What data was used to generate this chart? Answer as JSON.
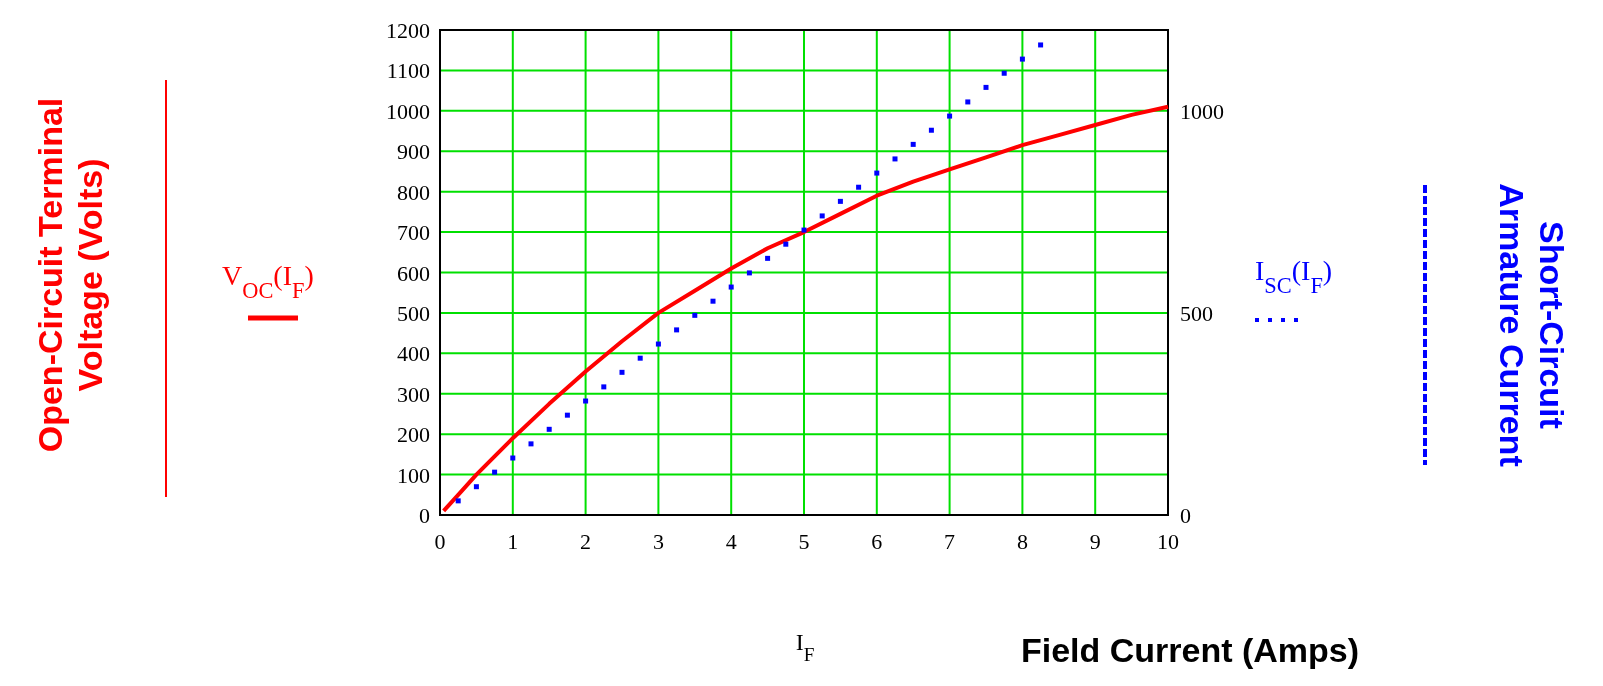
{
  "chart_data": {
    "type": "line",
    "xlabel": "I$_{F}$",
    "annotations": [
      "Open-Circuit Terminal Voltage (Volts)",
      "Short-Circuit Armature Current",
      "Field Current (Amps)"
    ],
    "xlim": [
      0,
      10
    ],
    "xticks": [
      0,
      1,
      2,
      3,
      4,
      5,
      6,
      7,
      8,
      9,
      10
    ],
    "ylim": [
      0,
      1200
    ],
    "yticks": [
      0,
      100,
      200,
      300,
      400,
      500,
      600,
      700,
      800,
      900,
      1000,
      1100,
      1200
    ],
    "y2lim": [
      0,
      1200
    ],
    "y2ticks": [
      0,
      500,
      1000
    ],
    "grid": true,
    "legend": "left",
    "series": [
      {
        "name": "V$_{OC}$(I$_{F}$)",
        "color": "#ff0000",
        "line_style": "solid",
        "marker": "none",
        "x": [
          0.05,
          0.25,
          0.5,
          0.75,
          1,
          1.5,
          2,
          2.5,
          3,
          3.5,
          4,
          4.5,
          5,
          5.5,
          6,
          6.5,
          7,
          7.5,
          8,
          8.5,
          9,
          9.5,
          10
        ],
        "values": [
          10,
          50,
          100,
          145,
          190,
          275,
          355,
          430,
          500,
          555,
          610,
          660,
          700,
          745,
          790,
          825,
          855,
          885,
          915,
          940,
          965,
          990,
          1010
        ]
      },
      {
        "name": "I$_{SC}$(I$_{F}$)",
        "color": "#0000ff",
        "type": "scatter",
        "marker": "square",
        "axis": "y2",
        "x": [
          0.25,
          0.5,
          0.75,
          1,
          1.25,
          1.5,
          1.75,
          2,
          2.25,
          2.5,
          2.75,
          3,
          3.25,
          3.5,
          3.75,
          4,
          4.25,
          4.5,
          4.75,
          5,
          5.25,
          5.5,
          5.75,
          6,
          6.25,
          6.5,
          6.75,
          7,
          7.25,
          7.5,
          7.75,
          8,
          8.25
        ],
        "values": [
          35,
          70,
          106,
          141,
          176,
          212,
          247,
          282,
          317,
          353,
          388,
          423,
          458,
          494,
          529,
          564,
          599,
          635,
          670,
          705,
          740,
          776,
          811,
          846,
          881,
          917,
          952,
          987,
          1022,
          1058,
          1093,
          1128,
          1163
        ]
      }
    ]
  }
}
